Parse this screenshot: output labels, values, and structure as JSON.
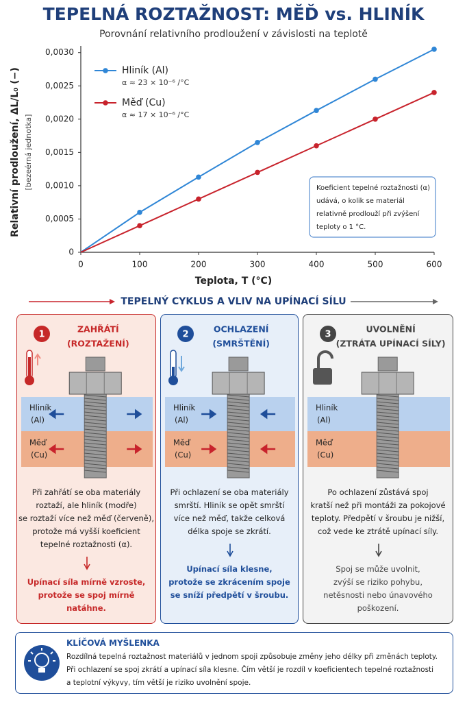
{
  "chart_data": {
    "type": "line",
    "title": "TEPELNÁ ROZTAŽNOST: MĚĎ vs. HLINÍK",
    "subtitle": "Porovnání relativního prodloužení v závislosti na teplotě",
    "x_label": "Teplota, T (°C)",
    "y_label": "Relativní prodloužení, ΔL/L₀ (−)",
    "y_label_note": "[bezeérná jednotka]",
    "x": [
      0,
      100,
      200,
      300,
      400,
      500,
      600
    ],
    "series": [
      {
        "name": "Hliník (Al)",
        "note": "α ≈ 23 × 10⁻⁶ /°C",
        "color": "#2f86d6",
        "values": [
          0,
          0.0006,
          0.00113,
          0.00165,
          0.00213,
          0.0026,
          0.00305
        ]
      },
      {
        "name": "Měď (Cu)",
        "note": "α ≈ 17 × 10⁻⁶ /°C",
        "color": "#c8232c",
        "values": [
          0,
          0.0004,
          0.0008,
          0.0012,
          0.0016,
          0.002,
          0.0024
        ]
      }
    ],
    "xlim": [
      0,
      600
    ],
    "xticks": [
      0,
      100,
      200,
      300,
      400,
      500,
      600
    ],
    "ylim": [
      0,
      0.0031
    ],
    "yticks": [
      0,
      {
        "value": 0.0005,
        "label": "0,0005"
      },
      {
        "value": 0.001,
        "label": "0,0010"
      },
      {
        "value": 0.0015,
        "label": "0,0015"
      },
      {
        "value": 0.002,
        "label": "0,0020"
      },
      {
        "value": 0.0025,
        "label": "0,0025"
      },
      {
        "value": 0.003,
        "label": "0,0030"
      }
    ],
    "grid": false,
    "legend": "upper left",
    "annotation": [
      "Koeficient tepelné roztažnosti (α)",
      "udává, o kolik se materiál",
      "relativně prodlouží při zvýšení",
      "teploty o 1 °C."
    ]
  },
  "section_title": "TEPELNÝ CYKLUS A VLIV NA UPÍNACÍ SÍLU",
  "layers": [
    [
      "Hliník",
      "(Al)"
    ],
    [
      "Měď",
      "(Cu)"
    ]
  ],
  "panels": [
    {
      "number": 1,
      "title": [
        "ZAHŘÁTÍ",
        "(ROZTAŽENÍ)"
      ],
      "color": "#c62828",
      "background": "#fbe8e1",
      "body": [
        "Při zahřátí se oba materiály",
        "roztaží, ale hliník (modře)",
        "se roztaží více než měď (červeně),",
        "protože má vyšší koeficient",
        "tepelné roztažnosti (α)."
      ],
      "conclusion": [
        "Upínací síla mírně vzroste,",
        "protože se spoj mírně natáhne."
      ]
    },
    {
      "number": 2,
      "title": [
        "OCHLAZENÍ",
        "(SMRŠTĚNÍ)"
      ],
      "color": "#1f4e9a",
      "background": "#e7eff9",
      "body": [
        "Při ochlazení se oba materiály",
        "smrští. Hliník se opět smrští",
        "více než měď, takže celková",
        "délka spoje se zkrátí."
      ],
      "conclusion": [
        "Upínací síla klesne,",
        "protože se zkrácením spoje",
        "se sníží předpětí v šroubu."
      ]
    },
    {
      "number": 3,
      "title": [
        "UVOLNĚNÍ",
        "(ZTRÁTA UPÍNACÍ SÍLY)"
      ],
      "color": "#444444",
      "background": "#f3f3f3",
      "body": [
        "Po ochlazení zůstává spoj",
        "kratší než při montáži za pokojové",
        "teploty. Předpětí v šroubu je nižší,",
        "což vede ke ztrátě upínací síly."
      ],
      "conclusion": [
        "Spoj se může uvolnit,",
        "zvýší se riziko pohybu,",
        "netěsnosti nebo únavového",
        "poškození."
      ]
    }
  ],
  "key_idea": {
    "title": "KLÍČOVÁ MYŠLENKA",
    "lines": [
      "Rozdílná tepelná roztažnost materiálů v jednom spoji způsobuje změny jeho délky při změnách teploty.",
      "Při ochlazení se spoj zkrátí a upínací síla klesne. Čím větší je rozdíl v koeficientech tepelné roztažnosti",
      "a teplotní výkyvy, tím větší je riziko uvolnění spoje."
    ]
  }
}
